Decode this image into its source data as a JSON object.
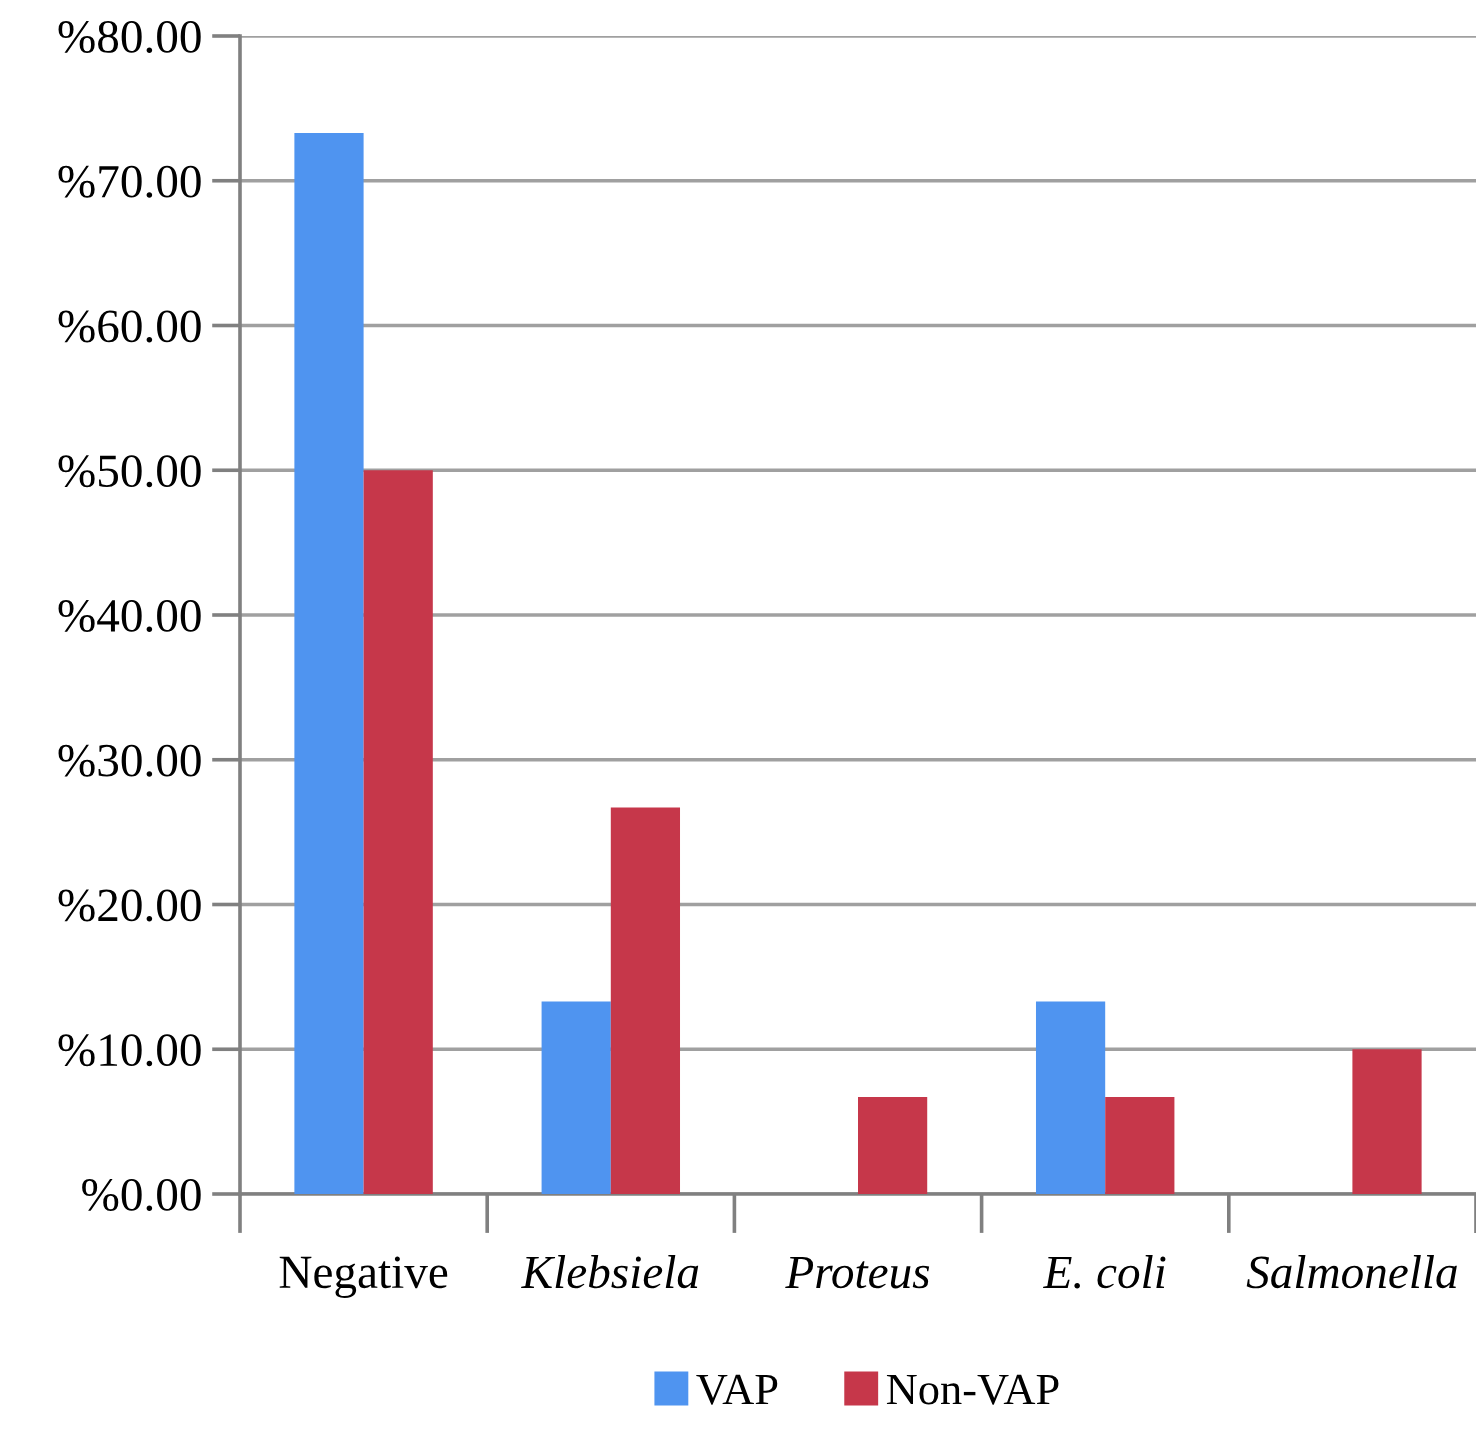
{
  "chart_data": {
    "type": "bar",
    "categories": [
      "Negative",
      "Klebsiela",
      "Proteus",
      "E. coli",
      "Salmonella"
    ],
    "series": [
      {
        "name": "VAP",
        "color": "#4f94f0",
        "values": [
          73.3,
          13.3,
          0,
          13.3,
          0
        ]
      },
      {
        "name": "Non-VAP",
        "color": "#c6374a",
        "values": [
          50,
          26.7,
          6.7,
          6.7,
          10
        ]
      }
    ],
    "ylim": [
      0,
      80
    ],
    "yticks": [
      {
        "value": 0,
        "label": "%0.00"
      },
      {
        "value": 10,
        "label": "%10.00"
      },
      {
        "value": 20,
        "label": "%20.00"
      },
      {
        "value": 30,
        "label": "%30.00"
      },
      {
        "value": 40,
        "label": "%40.00"
      },
      {
        "value": 50,
        "label": "%50.00"
      },
      {
        "value": 60,
        "label": "%60.00"
      },
      {
        "value": 70,
        "label": "%70.00"
      },
      {
        "value": 80,
        "label": "%80.00"
      }
    ],
    "grid": "y",
    "legend": "bottom"
  }
}
